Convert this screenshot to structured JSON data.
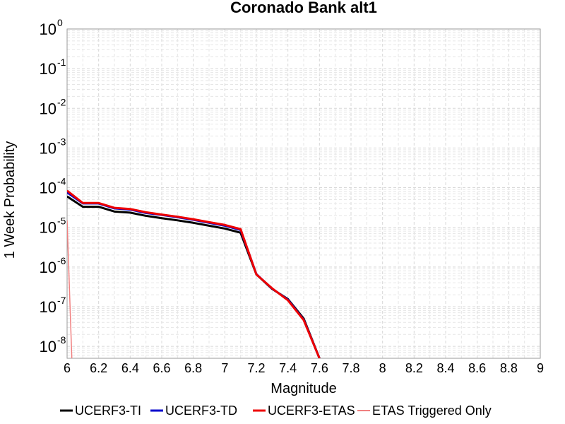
{
  "chart_data": {
    "type": "line",
    "title": "Coronado Bank alt1",
    "xlabel": "Magnitude",
    "ylabel": "1 Week Probability",
    "xlim": [
      6,
      9
    ],
    "ylim": [
      5e-09,
      1
    ],
    "yscale": "log",
    "grid": true,
    "legend_position": "bottom",
    "x_ticks": [
      "6",
      "6.2",
      "6.4",
      "6.6",
      "6.8",
      "7",
      "7.2",
      "7.4",
      "7.6",
      "7.8",
      "8",
      "8.2",
      "8.4",
      "8.6",
      "8.8",
      "9"
    ],
    "y_ticks": [
      {
        "value": 1e-08,
        "base": "10",
        "exp": "-8"
      },
      {
        "value": 1e-07,
        "base": "10",
        "exp": "-7"
      },
      {
        "value": 1e-06,
        "base": "10",
        "exp": "-6"
      },
      {
        "value": 1e-05,
        "base": "10",
        "exp": "-5"
      },
      {
        "value": 0.0001,
        "base": "10",
        "exp": "-4"
      },
      {
        "value": 0.001,
        "base": "10",
        "exp": "-3"
      },
      {
        "value": 0.01,
        "base": "10",
        "exp": "-2"
      },
      {
        "value": 0.1,
        "base": "10",
        "exp": "-1"
      },
      {
        "value": 1,
        "base": "10",
        "exp": "0"
      }
    ],
    "series": [
      {
        "name": "UCERF3-TI",
        "color": "#000000",
        "width": 3,
        "x": [
          6.0,
          6.1,
          6.2,
          6.3,
          6.4,
          6.5,
          6.6,
          6.7,
          6.8,
          6.9,
          7.0,
          7.1,
          7.2,
          7.3,
          7.4,
          7.5,
          7.6
        ],
        "y": [
          6e-05,
          3.3e-05,
          3.3e-05,
          2.5e-05,
          2.35e-05,
          1.95e-05,
          1.7e-05,
          1.5e-05,
          1.3e-05,
          1.1e-05,
          9.3e-06,
          7.3e-06,
          6.5e-07,
          2.8e-07,
          1.55e-07,
          5e-08,
          5e-09
        ]
      },
      {
        "name": "UCERF3-TD",
        "color": "#0000cc",
        "width": 3,
        "x": [
          6.0,
          6.1,
          6.2,
          6.3,
          6.4,
          6.5,
          6.6,
          6.7,
          6.8,
          6.9,
          7.0,
          7.1,
          7.2,
          7.3,
          7.4,
          7.5,
          7.6
        ],
        "y": [
          7.6e-05,
          4e-05,
          4e-05,
          3e-05,
          2.8e-05,
          2.3e-05,
          2.05e-05,
          1.8e-05,
          1.55e-05,
          1.3e-05,
          1.1e-05,
          8.6e-06,
          6.6e-07,
          2.85e-07,
          1.5e-07,
          4.7e-08,
          5e-09
        ]
      },
      {
        "name": "UCERF3-ETAS",
        "color": "#ee0000",
        "width": 3,
        "x": [
          6.0,
          6.1,
          6.2,
          6.3,
          6.4,
          6.5,
          6.6,
          6.7,
          6.8,
          6.9,
          7.0,
          7.1,
          7.2,
          7.3,
          7.4,
          7.5,
          7.6
        ],
        "y": [
          8.4e-05,
          4.1e-05,
          4.1e-05,
          3.1e-05,
          2.9e-05,
          2.4e-05,
          2.1e-05,
          1.85e-05,
          1.6e-05,
          1.35e-05,
          1.15e-05,
          9e-06,
          6.5e-07,
          2.9e-07,
          1.45e-07,
          4.6e-08,
          5e-09
        ]
      },
      {
        "name": "ETAS Triggered Only",
        "color": "#f08080",
        "width": 1.5,
        "x": [
          6.0,
          6.03
        ],
        "y": [
          1.5e-05,
          5e-09
        ]
      }
    ]
  }
}
